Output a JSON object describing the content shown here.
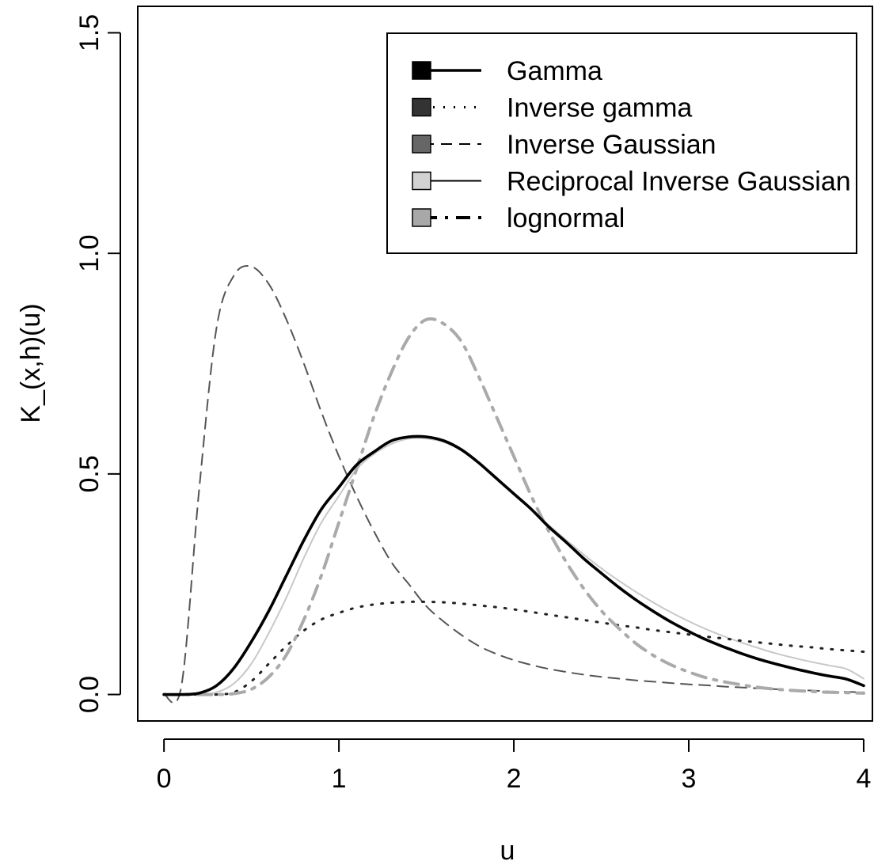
{
  "chart_data": {
    "type": "line",
    "title": "",
    "xlabel": "u",
    "ylabel": "K_(x,h)(u)",
    "xlim": [
      -0.15,
      4.05
    ],
    "ylim": [
      -0.06,
      1.56
    ],
    "x_ticks": [
      "0",
      "1",
      "2",
      "3",
      "4"
    ],
    "y_ticks": [
      "0.0",
      "0.5",
      "1.0",
      "1.5"
    ],
    "grid": false,
    "legend_position": "top-right",
    "x": [
      0,
      0.1,
      0.2,
      0.3,
      0.4,
      0.5,
      0.6,
      0.7,
      0.8,
      0.9,
      1.0,
      1.1,
      1.2,
      1.3,
      1.4,
      1.5,
      1.6,
      1.7,
      1.8,
      1.9,
      2.0,
      2.1,
      2.2,
      2.3,
      2.4,
      2.5,
      2.6,
      2.7,
      2.8,
      2.9,
      3.0,
      3.1,
      3.2,
      3.3,
      3.4,
      3.5,
      3.6,
      3.7,
      3.8,
      3.9,
      4.0
    ],
    "series": [
      {
        "name": "Gamma",
        "color": "#000000",
        "style": "solid",
        "width": 3.6,
        "swatch": "#000000",
        "values": [
          0.0,
          0.0,
          0.003,
          0.02,
          0.06,
          0.12,
          0.19,
          0.27,
          0.35,
          0.42,
          0.47,
          0.52,
          0.55,
          0.575,
          0.584,
          0.584,
          0.575,
          0.555,
          0.525,
          0.49,
          0.455,
          0.42,
          0.38,
          0.345,
          0.308,
          0.275,
          0.243,
          0.214,
          0.188,
          0.164,
          0.143,
          0.124,
          0.108,
          0.093,
          0.08,
          0.069,
          0.059,
          0.05,
          0.042,
          0.035,
          0.02
        ]
      },
      {
        "name": "Inverse gamma",
        "color": "#222222",
        "style": "dotted",
        "width": 3,
        "swatch": "#333333",
        "values": [
          0.0,
          0.0,
          0.0,
          0.0,
          0.005,
          0.03,
          0.07,
          0.11,
          0.145,
          0.17,
          0.185,
          0.197,
          0.204,
          0.208,
          0.21,
          0.21,
          0.209,
          0.206,
          0.202,
          0.198,
          0.193,
          0.187,
          0.181,
          0.175,
          0.169,
          0.163,
          0.157,
          0.152,
          0.146,
          0.141,
          0.136,
          0.131,
          0.127,
          0.122,
          0.118,
          0.114,
          0.11,
          0.107,
          0.103,
          0.1,
          0.097
        ]
      },
      {
        "name": "Inverse Gaussian",
        "color": "#555555",
        "style": "dashed",
        "width": 2,
        "swatch": "#666666",
        "values": [
          0.0,
          0.02,
          0.46,
          0.83,
          0.95,
          0.97,
          0.93,
          0.85,
          0.75,
          0.64,
          0.54,
          0.45,
          0.37,
          0.3,
          0.25,
          0.2,
          0.165,
          0.135,
          0.11,
          0.092,
          0.078,
          0.067,
          0.058,
          0.051,
          0.045,
          0.04,
          0.036,
          0.032,
          0.029,
          0.026,
          0.023,
          0.021,
          0.018,
          0.016,
          0.014,
          0.012,
          0.01,
          0.009,
          0.007,
          0.006,
          0.005
        ]
      },
      {
        "name": "Reciprocal Inverse Gaussian",
        "color": "#c8c8c8",
        "style": "solid",
        "width": 2,
        "swatch": "#d2d2d2",
        "values": [
          0.0,
          0.0,
          0.0,
          0.005,
          0.025,
          0.07,
          0.14,
          0.22,
          0.31,
          0.39,
          0.45,
          0.51,
          0.545,
          0.568,
          0.58,
          0.58,
          0.572,
          0.553,
          0.525,
          0.49,
          0.455,
          0.42,
          0.384,
          0.35,
          0.317,
          0.286,
          0.258,
          0.232,
          0.208,
          0.186,
          0.166,
          0.148,
          0.132,
          0.118,
          0.105,
          0.093,
          0.083,
          0.074,
          0.066,
          0.058,
          0.036
        ]
      },
      {
        "name": "lognormal",
        "color": "#aaaaaa",
        "style": "dashdot",
        "width": 4,
        "swatch": "#a8a8a8",
        "values": [
          0.0,
          0.0,
          0.0,
          0.0,
          0.002,
          0.012,
          0.04,
          0.09,
          0.17,
          0.27,
          0.39,
          0.51,
          0.63,
          0.73,
          0.81,
          0.85,
          0.84,
          0.8,
          0.72,
          0.63,
          0.54,
          0.45,
          0.37,
          0.3,
          0.24,
          0.19,
          0.15,
          0.115,
          0.088,
          0.067,
          0.051,
          0.038,
          0.029,
          0.022,
          0.016,
          0.012,
          0.009,
          0.007,
          0.005,
          0.004,
          0.003
        ]
      }
    ]
  }
}
